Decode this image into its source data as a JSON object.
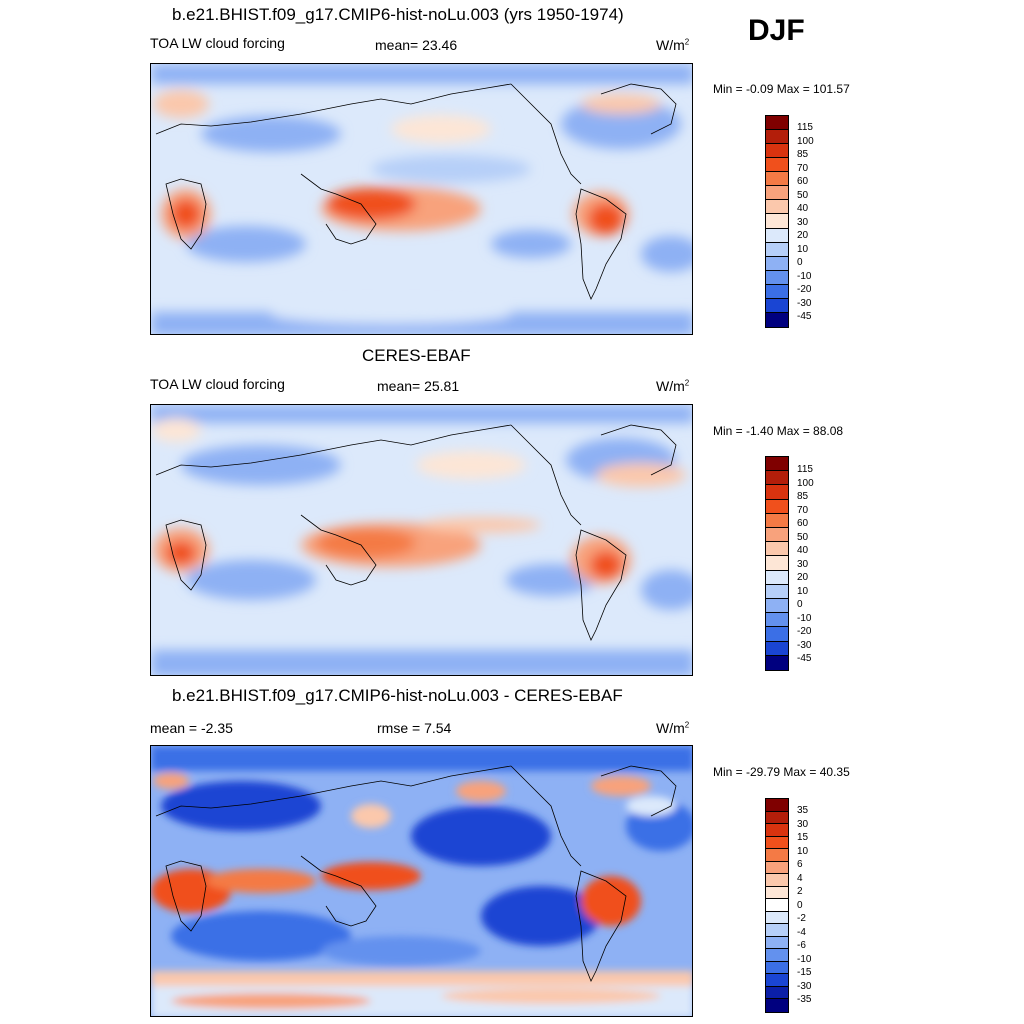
{
  "season": "DJF",
  "panels": [
    {
      "title": "b.e21.BHIST.f09_g17.CMIP6-hist-noLu.003 (yrs 1950-1974)",
      "left_label": "TOA LW cloud forcing",
      "center_label": "mean=  23.46",
      "units": "W/m",
      "units_sup": "2",
      "minmax": "Min =  -0.09 Max = 101.57",
      "colorbar_labels": [
        "115",
        "100",
        "85",
        "70",
        "60",
        "50",
        "40",
        "30",
        "20",
        "10",
        "0",
        "-10",
        "-20",
        "-30",
        "-45"
      ]
    },
    {
      "title": "CERES-EBAF",
      "left_label": "TOA LW cloud forcing",
      "center_label": "mean=  25.81",
      "units": "W/m",
      "units_sup": "2",
      "minmax": "Min =  -1.40 Max =  88.08",
      "colorbar_labels": [
        "115",
        "100",
        "85",
        "70",
        "60",
        "50",
        "40",
        "30",
        "20",
        "10",
        "0",
        "-10",
        "-20",
        "-30",
        "-45"
      ]
    },
    {
      "title": "b.e21.BHIST.f09_g17.CMIP6-hist-noLu.003 - CERES-EBAF",
      "left_label": "mean =  -2.35",
      "center_label": "rmse =   7.54",
      "units": "W/m",
      "units_sup": "2",
      "minmax": "Min = -29.79 Max =  40.35",
      "colorbar_labels": [
        "35",
        "30",
        "15",
        "10",
        "6",
        "4",
        "2",
        "0",
        "-2",
        "-4",
        "-6",
        "-10",
        "-15",
        "-30",
        "-35"
      ]
    }
  ],
  "colors": {
    "main_scale": [
      "#7f0000",
      "#b31e0a",
      "#d9330f",
      "#f0501c",
      "#f47a45",
      "#f8a27c",
      "#fbc8ac",
      "#fde6d6",
      "#dce9fb",
      "#b6cff8",
      "#8eb1f4",
      "#6391ee",
      "#3b6fe6",
      "#1a45d3",
      "#0b1fa8",
      "#00007f"
    ],
    "diff_scale": [
      "#7f0000",
      "#b31e0a",
      "#d9330f",
      "#f0501c",
      "#f47a45",
      "#f8a27c",
      "#fbc8ac",
      "#fde6d6",
      "#ffffff",
      "#dce9fb",
      "#b6cff8",
      "#8eb1f4",
      "#6391ee",
      "#3b6fe6",
      "#1a45d3",
      "#0b1fa8",
      "#00007f"
    ]
  }
}
